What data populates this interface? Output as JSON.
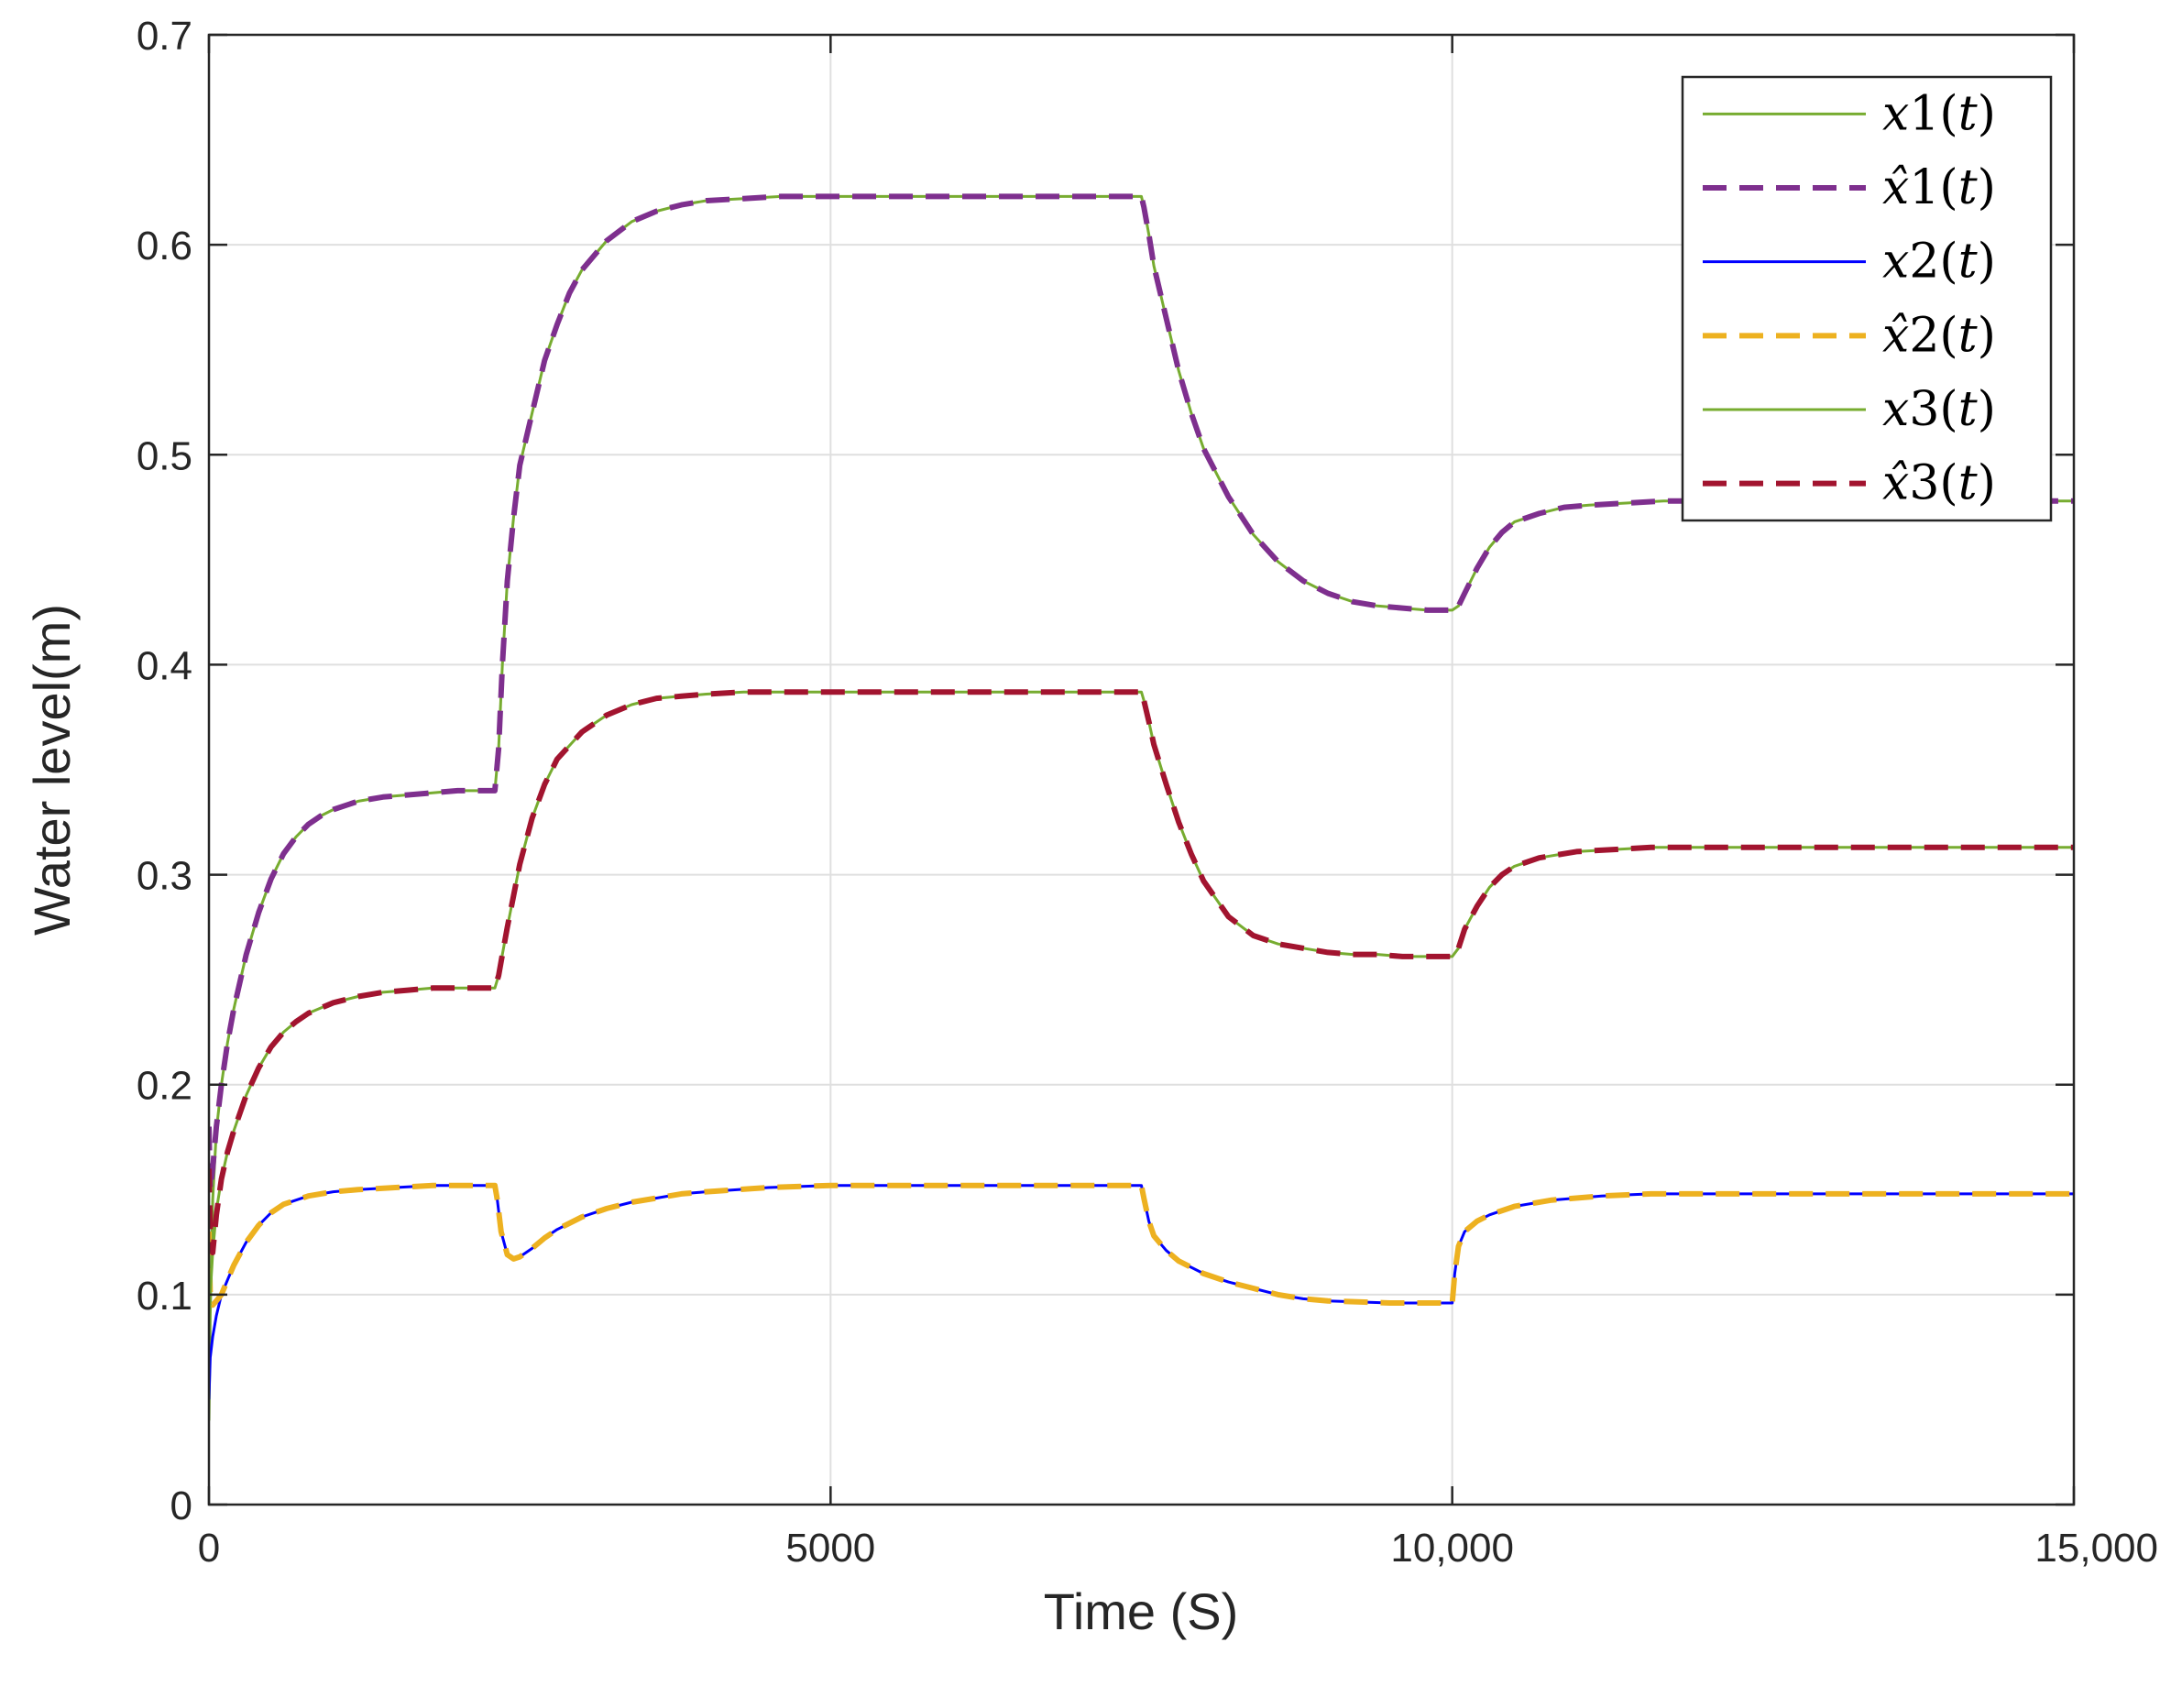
{
  "chart_data": {
    "type": "line",
    "title": "",
    "xlabel": "Time (S)",
    "ylabel": "Water level(m)",
    "xlim": [
      0,
      15000
    ],
    "ylim": [
      0,
      0.7
    ],
    "xticks": [
      0,
      5000,
      10000,
      15000
    ],
    "xtick_labels": [
      "0",
      "5000",
      "10,000",
      "15,000"
    ],
    "yticks": [
      0,
      0.1,
      0.2,
      0.3,
      0.4,
      0.5,
      0.6,
      0.7
    ],
    "ytick_labels": [
      "0",
      "0.1",
      "0.2",
      "0.3",
      "0.4",
      "0.5",
      "0.6",
      "0.7"
    ],
    "grid": true,
    "legend_position": "top-right",
    "series": [
      {
        "name": "x1(t)",
        "legend_var": "x",
        "legend_hat": false,
        "legend_index": "1",
        "color": "#77AC30",
        "style": "solid",
        "x": [
          0,
          10,
          30,
          60,
          100,
          150,
          200,
          300,
          400,
          500,
          600,
          700,
          800,
          900,
          1000,
          1200,
          1400,
          1600,
          1800,
          2000,
          2200,
          2300,
          2330,
          2360,
          2400,
          2450,
          2500,
          2600,
          2700,
          2800,
          2900,
          3000,
          3200,
          3400,
          3600,
          3800,
          4000,
          4300,
          4600,
          5000,
          5500,
          6000,
          6500,
          7000,
          7500,
          7520,
          7560,
          7600,
          7700,
          7800,
          7900,
          8000,
          8200,
          8400,
          8600,
          8800,
          9000,
          9200,
          9400,
          9600,
          9800,
          10000,
          10050,
          10100,
          10200,
          10300,
          10400,
          10500,
          10700,
          10900,
          11100,
          11400,
          11700,
          12000,
          12500,
          13000,
          13500,
          14000,
          14500,
          15000
        ],
        "y": [
          0.04,
          0.09,
          0.145,
          0.178,
          0.2,
          0.22,
          0.236,
          0.262,
          0.282,
          0.298,
          0.31,
          0.318,
          0.324,
          0.328,
          0.331,
          0.335,
          0.337,
          0.338,
          0.339,
          0.34,
          0.34,
          0.34,
          0.36,
          0.4,
          0.44,
          0.47,
          0.495,
          0.52,
          0.545,
          0.562,
          0.577,
          0.588,
          0.602,
          0.611,
          0.616,
          0.619,
          0.621,
          0.622,
          0.623,
          0.623,
          0.623,
          0.623,
          0.623,
          0.623,
          0.623,
          0.618,
          0.605,
          0.59,
          0.565,
          0.54,
          0.52,
          0.503,
          0.48,
          0.462,
          0.449,
          0.44,
          0.434,
          0.43,
          0.428,
          0.427,
          0.426,
          0.426,
          0.428,
          0.434,
          0.446,
          0.456,
          0.463,
          0.468,
          0.472,
          0.475,
          0.476,
          0.477,
          0.478,
          0.478,
          0.478,
          0.478,
          0.478,
          0.478,
          0.478,
          0.478
        ]
      },
      {
        "name": "x̂1(t)",
        "legend_var": "x",
        "legend_hat": true,
        "legend_index": "1",
        "color": "#7E2F8E",
        "style": "dashed",
        "x": [
          0,
          10,
          30,
          60,
          100,
          150,
          200,
          300,
          400,
          500,
          600,
          700,
          800,
          900,
          1000,
          1200,
          1400,
          1600,
          1800,
          2000,
          2200,
          2300,
          2330,
          2360,
          2400,
          2450,
          2500,
          2600,
          2700,
          2800,
          2900,
          3000,
          3200,
          3400,
          3600,
          3800,
          4000,
          4300,
          4600,
          5000,
          5500,
          6000,
          6500,
          7000,
          7500,
          7520,
          7560,
          7600,
          7700,
          7800,
          7900,
          8000,
          8200,
          8400,
          8600,
          8800,
          9000,
          9200,
          9400,
          9600,
          9800,
          10000,
          10050,
          10100,
          10200,
          10300,
          10400,
          10500,
          10700,
          10900,
          11100,
          11400,
          11700,
          12000,
          12500,
          13000,
          13500,
          14000,
          14500,
          15000
        ],
        "y": [
          0.18,
          0.15,
          0.16,
          0.18,
          0.2,
          0.22,
          0.236,
          0.262,
          0.282,
          0.298,
          0.31,
          0.318,
          0.324,
          0.328,
          0.331,
          0.335,
          0.337,
          0.338,
          0.339,
          0.34,
          0.34,
          0.34,
          0.36,
          0.4,
          0.44,
          0.47,
          0.495,
          0.52,
          0.545,
          0.562,
          0.577,
          0.588,
          0.602,
          0.611,
          0.616,
          0.619,
          0.621,
          0.622,
          0.623,
          0.623,
          0.623,
          0.623,
          0.623,
          0.623,
          0.623,
          0.618,
          0.605,
          0.59,
          0.565,
          0.54,
          0.52,
          0.503,
          0.48,
          0.462,
          0.449,
          0.44,
          0.434,
          0.43,
          0.428,
          0.427,
          0.426,
          0.426,
          0.428,
          0.434,
          0.446,
          0.456,
          0.463,
          0.468,
          0.472,
          0.475,
          0.476,
          0.477,
          0.478,
          0.478,
          0.478,
          0.478,
          0.478,
          0.478,
          0.478,
          0.478
        ]
      },
      {
        "name": "x2(t)",
        "legend_var": "x",
        "legend_hat": false,
        "legend_index": "2",
        "color": "#0000FF",
        "style": "solid",
        "x": [
          0,
          10,
          30,
          60,
          100,
          150,
          200,
          300,
          400,
          500,
          600,
          800,
          1000,
          1200,
          1500,
          1800,
          2000,
          2300,
          2320,
          2350,
          2400,
          2450,
          2500,
          2600,
          2700,
          2800,
          3000,
          3200,
          3400,
          3600,
          3800,
          4000,
          4500,
          5000,
          6000,
          7000,
          7500,
          7520,
          7560,
          7600,
          7700,
          7800,
          8000,
          8200,
          8400,
          8600,
          8800,
          9000,
          9500,
          10000,
          10020,
          10050,
          10100,
          10200,
          10300,
          10500,
          10800,
          11200,
          11600,
          12000,
          13000,
          14000,
          15000
        ],
        "y": [
          0.05,
          0.07,
          0.08,
          0.09,
          0.1,
          0.107,
          0.114,
          0.125,
          0.133,
          0.139,
          0.143,
          0.147,
          0.149,
          0.15,
          0.151,
          0.152,
          0.152,
          0.152,
          0.145,
          0.13,
          0.119,
          0.117,
          0.118,
          0.122,
          0.127,
          0.131,
          0.137,
          0.141,
          0.144,
          0.146,
          0.148,
          0.149,
          0.151,
          0.152,
          0.152,
          0.152,
          0.152,
          0.146,
          0.135,
          0.128,
          0.121,
          0.116,
          0.11,
          0.106,
          0.103,
          0.1,
          0.098,
          0.097,
          0.096,
          0.096,
          0.11,
          0.123,
          0.13,
          0.135,
          0.138,
          0.142,
          0.145,
          0.147,
          0.148,
          0.148,
          0.148,
          0.148,
          0.148
        ]
      },
      {
        "name": "x̂2(t)",
        "legend_var": "x",
        "legend_hat": true,
        "legend_index": "2",
        "color": "#EDB120",
        "style": "dashed",
        "x": [
          0,
          10,
          30,
          60,
          100,
          150,
          200,
          300,
          400,
          500,
          600,
          800,
          1000,
          1200,
          1500,
          1800,
          2000,
          2300,
          2320,
          2350,
          2400,
          2450,
          2500,
          2600,
          2700,
          2800,
          3000,
          3200,
          3400,
          3600,
          3800,
          4000,
          4500,
          5000,
          6000,
          7000,
          7500,
          7520,
          7560,
          7600,
          7700,
          7800,
          8000,
          8200,
          8400,
          8600,
          8800,
          9000,
          9500,
          10000,
          10020,
          10050,
          10100,
          10200,
          10300,
          10500,
          10800,
          11200,
          11600,
          12000,
          13000,
          14000,
          15000
        ],
        "y": [
          0.13,
          0.1,
          0.095,
          0.097,
          0.1,
          0.107,
          0.114,
          0.125,
          0.133,
          0.139,
          0.143,
          0.147,
          0.149,
          0.15,
          0.151,
          0.152,
          0.152,
          0.152,
          0.145,
          0.13,
          0.119,
          0.117,
          0.118,
          0.122,
          0.127,
          0.131,
          0.137,
          0.141,
          0.144,
          0.146,
          0.148,
          0.149,
          0.151,
          0.152,
          0.152,
          0.152,
          0.152,
          0.146,
          0.135,
          0.128,
          0.121,
          0.116,
          0.11,
          0.106,
          0.103,
          0.1,
          0.098,
          0.097,
          0.096,
          0.096,
          0.11,
          0.123,
          0.13,
          0.135,
          0.138,
          0.142,
          0.145,
          0.147,
          0.148,
          0.148,
          0.148,
          0.148,
          0.148
        ]
      },
      {
        "name": "x3(t)",
        "legend_var": "x",
        "legend_hat": false,
        "legend_index": "3",
        "color": "#77AC30",
        "style": "solid",
        "x": [
          0,
          10,
          30,
          60,
          100,
          150,
          200,
          300,
          400,
          500,
          600,
          700,
          800,
          1000,
          1200,
          1400,
          1600,
          1800,
          2000,
          2300,
          2330,
          2360,
          2400,
          2450,
          2500,
          2600,
          2700,
          2800,
          3000,
          3200,
          3400,
          3600,
          3800,
          4000,
          4300,
          4600,
          5000,
          6000,
          7000,
          7500,
          7520,
          7560,
          7600,
          7700,
          7800,
          7900,
          8000,
          8200,
          8400,
          8600,
          8800,
          9000,
          9200,
          9400,
          9600,
          9800,
          10000,
          10050,
          10100,
          10200,
          10300,
          10400,
          10500,
          10700,
          11000,
          11300,
          11600,
          12000,
          12500,
          13000,
          14000,
          15000
        ],
        "y": [
          0.08,
          0.1,
          0.12,
          0.14,
          0.155,
          0.168,
          0.178,
          0.195,
          0.208,
          0.218,
          0.225,
          0.23,
          0.234,
          0.239,
          0.242,
          0.244,
          0.245,
          0.246,
          0.246,
          0.246,
          0.252,
          0.262,
          0.275,
          0.29,
          0.305,
          0.327,
          0.343,
          0.355,
          0.368,
          0.376,
          0.381,
          0.384,
          0.385,
          0.386,
          0.387,
          0.387,
          0.387,
          0.387,
          0.387,
          0.387,
          0.383,
          0.373,
          0.362,
          0.343,
          0.325,
          0.31,
          0.297,
          0.28,
          0.271,
          0.267,
          0.265,
          0.263,
          0.262,
          0.262,
          0.261,
          0.261,
          0.261,
          0.265,
          0.274,
          0.285,
          0.294,
          0.3,
          0.304,
          0.308,
          0.311,
          0.312,
          0.313,
          0.313,
          0.313,
          0.313,
          0.313,
          0.313
        ]
      },
      {
        "name": "x̂3(t)",
        "legend_var": "x",
        "legend_hat": true,
        "legend_index": "3",
        "color": "#A2142F",
        "style": "dashed",
        "x": [
          0,
          10,
          30,
          60,
          100,
          150,
          200,
          300,
          400,
          500,
          600,
          700,
          800,
          1000,
          1200,
          1400,
          1600,
          1800,
          2000,
          2300,
          2330,
          2360,
          2400,
          2450,
          2500,
          2600,
          2700,
          2800,
          3000,
          3200,
          3400,
          3600,
          3800,
          4000,
          4300,
          4600,
          5000,
          6000,
          7000,
          7500,
          7520,
          7560,
          7600,
          7700,
          7800,
          7900,
          8000,
          8200,
          8400,
          8600,
          8800,
          9000,
          9200,
          9400,
          9600,
          9800,
          10000,
          10050,
          10100,
          10200,
          10300,
          10400,
          10500,
          10700,
          11000,
          11300,
          11600,
          12000,
          12500,
          13000,
          14000,
          15000
        ],
        "y": [
          0.16,
          0.13,
          0.12,
          0.138,
          0.155,
          0.168,
          0.178,
          0.195,
          0.208,
          0.218,
          0.225,
          0.23,
          0.234,
          0.239,
          0.242,
          0.244,
          0.245,
          0.246,
          0.246,
          0.246,
          0.252,
          0.262,
          0.275,
          0.29,
          0.305,
          0.327,
          0.343,
          0.355,
          0.368,
          0.376,
          0.381,
          0.384,
          0.385,
          0.386,
          0.387,
          0.387,
          0.387,
          0.387,
          0.387,
          0.387,
          0.383,
          0.373,
          0.362,
          0.343,
          0.325,
          0.31,
          0.297,
          0.28,
          0.271,
          0.267,
          0.265,
          0.263,
          0.262,
          0.262,
          0.261,
          0.261,
          0.261,
          0.265,
          0.274,
          0.285,
          0.294,
          0.3,
          0.304,
          0.308,
          0.311,
          0.312,
          0.313,
          0.313,
          0.313,
          0.313,
          0.313,
          0.313
        ]
      }
    ]
  }
}
